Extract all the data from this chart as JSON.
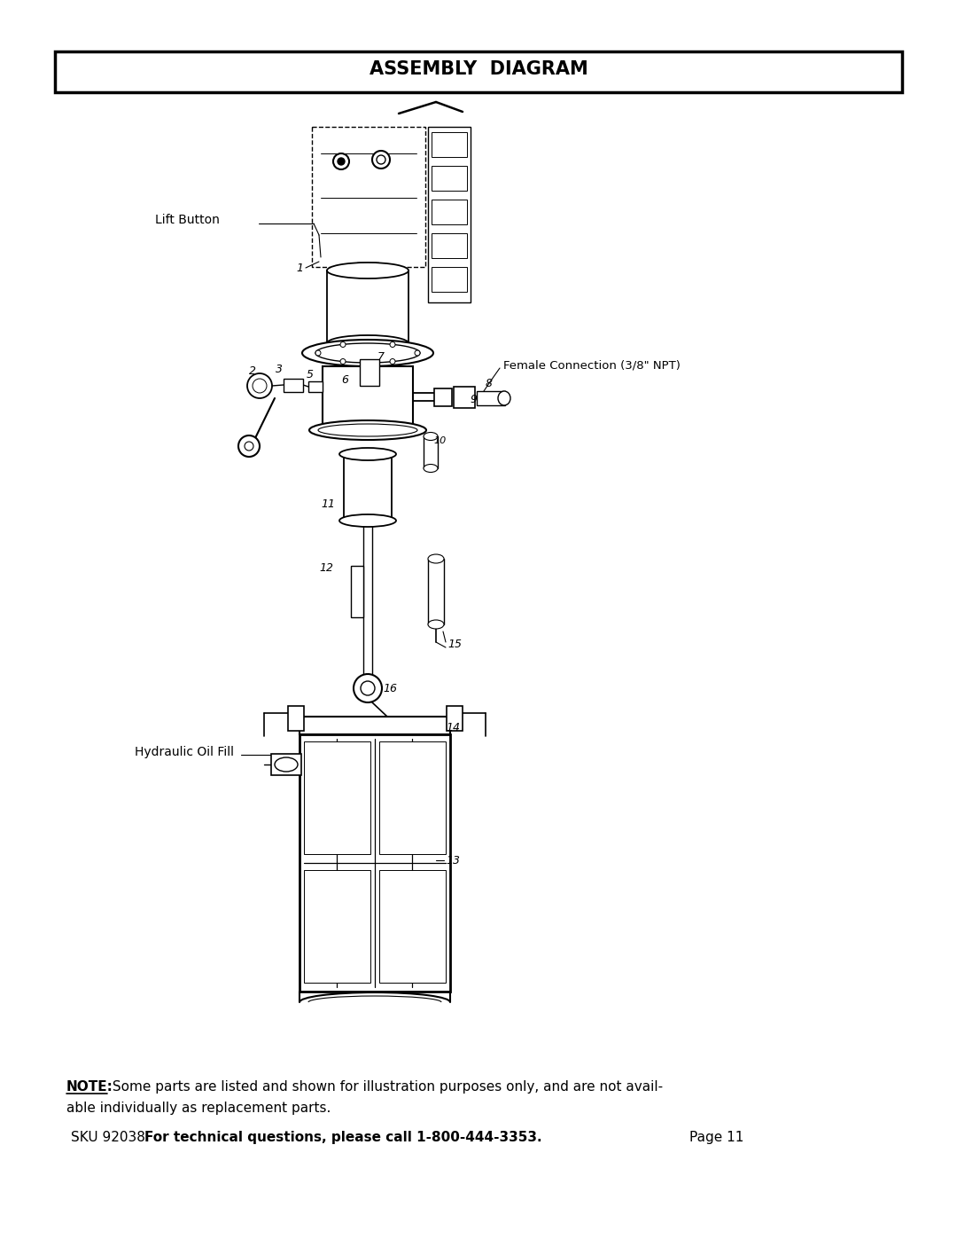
{
  "title": "ASSEMBLY  DIAGRAM",
  "bg_color": "#ffffff",
  "note_bold": "NOTE:",
  "note_rest": " Some parts are listed and shown for illustration purposes only, and are not avail-",
  "note_line2": "able individually as replacement parts.",
  "footer_sku": "SKU 92038",
  "footer_bold": "For technical questions, please call 1-800-444-3353.",
  "footer_page": "Page 11",
  "label_lift_button": "Lift Button",
  "label_female_conn": "Female Connection (3/8\" NPT)",
  "label_hydraulic": "Hydraulic Oil Fill",
  "parts": [
    "1",
    "2",
    "3",
    "5",
    "6",
    "7",
    "8",
    "9",
    "10",
    "11",
    "12",
    "13",
    "14",
    "15",
    "16"
  ]
}
